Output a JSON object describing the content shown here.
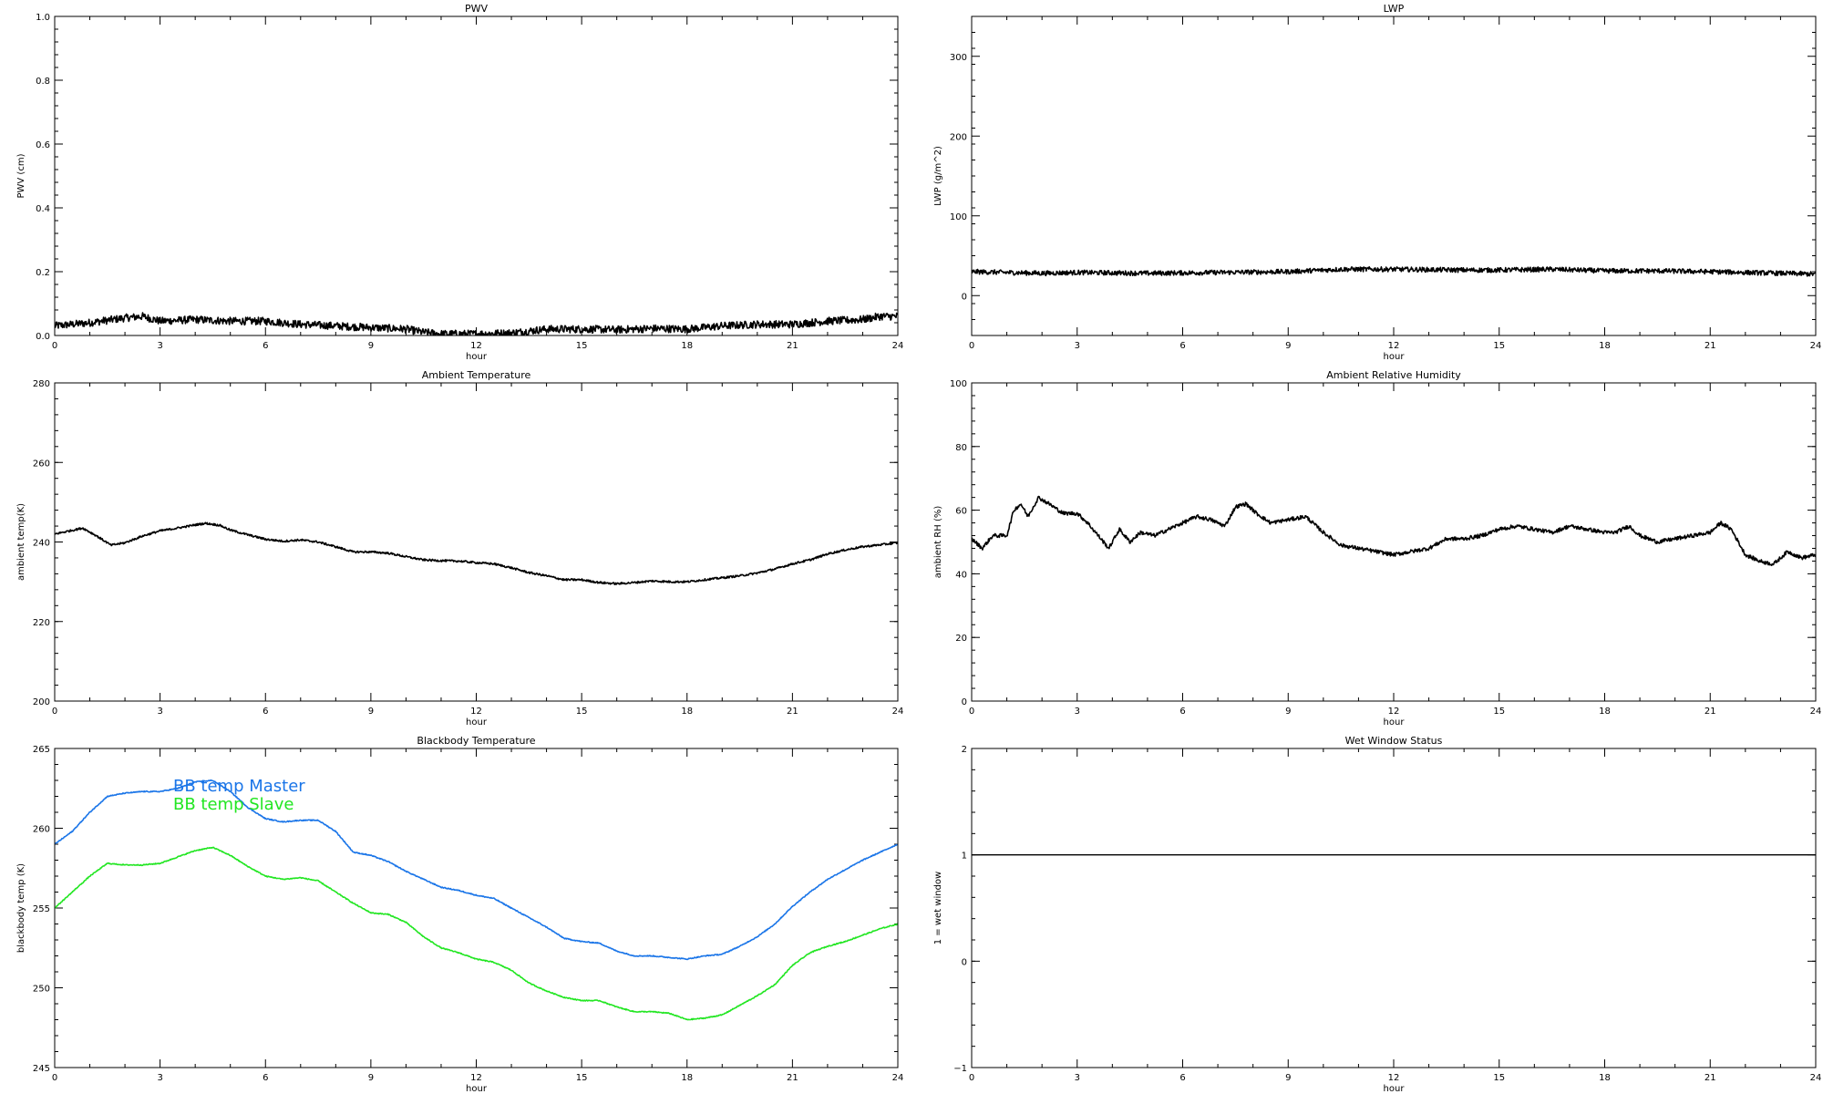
{
  "chart_data": [
    {
      "id": "pwv",
      "type": "line",
      "title": "PWV",
      "xlabel": "hour",
      "ylabel": "PWV (cm)",
      "xlim": [
        0,
        24
      ],
      "ylim": [
        0,
        1.0
      ],
      "xticks": [
        0,
        3,
        6,
        9,
        12,
        15,
        18,
        21,
        24
      ],
      "yticks": [
        0.0,
        0.2,
        0.4,
        0.6,
        0.8,
        1.0
      ],
      "ytick_labels": [
        "0.0",
        "0.2",
        "0.4",
        "0.6",
        "0.8",
        "1.0"
      ],
      "noise": 0.012,
      "series": [
        {
          "color": "#000000",
          "x": [
            0,
            1,
            2,
            2.5,
            3,
            4,
            5,
            6,
            7,
            8,
            9,
            10,
            10.5,
            11,
            12,
            13,
            14,
            15,
            16,
            17,
            18,
            19,
            20,
            21,
            22,
            23,
            23.5,
            24
          ],
          "y": [
            0.03,
            0.04,
            0.055,
            0.06,
            0.045,
            0.05,
            0.045,
            0.045,
            0.035,
            0.03,
            0.025,
            0.02,
            0.01,
            0.005,
            0.005,
            0.008,
            0.02,
            0.02,
            0.018,
            0.022,
            0.02,
            0.03,
            0.035,
            0.035,
            0.045,
            0.05,
            0.06,
            0.06
          ]
        }
      ]
    },
    {
      "id": "lwp",
      "type": "line",
      "title": "LWP",
      "xlabel": "hour",
      "ylabel": "LWP (g/m^2)",
      "xlim": [
        0,
        24
      ],
      "ylim": [
        -50,
        350
      ],
      "xticks": [
        0,
        3,
        6,
        9,
        12,
        15,
        18,
        21,
        24
      ],
      "yticks": [
        0,
        100,
        200,
        300
      ],
      "ytick_labels": [
        "0",
        "100",
        "200",
        "300"
      ],
      "noise": 3,
      "series": [
        {
          "color": "#000000",
          "x": [
            0,
            2,
            3,
            5,
            7,
            9,
            10.5,
            12,
            14,
            15,
            16.5,
            18,
            19.5,
            21,
            23,
            24
          ],
          "y": [
            30,
            28,
            29,
            28,
            29,
            30,
            33,
            33,
            32,
            32,
            33,
            31,
            31,
            30,
            28,
            27
          ]
        }
      ]
    },
    {
      "id": "ambient-temperature",
      "type": "line",
      "title": "Ambient Temperature",
      "xlabel": "hour",
      "ylabel": "ambient temp(K)",
      "xlim": [
        0,
        24
      ],
      "ylim": [
        200,
        280
      ],
      "xticks": [
        0,
        3,
        6,
        9,
        12,
        15,
        18,
        21,
        24
      ],
      "yticks": [
        200,
        220,
        240,
        260,
        280
      ],
      "ytick_labels": [
        "200",
        "220",
        "240",
        "260",
        "280"
      ],
      "noise": 0.25,
      "series": [
        {
          "color": "#000000",
          "x": [
            0,
            0.8,
            1.2,
            1.6,
            2,
            2.5,
            3,
            3.5,
            4,
            4.3,
            4.7,
            5,
            5.5,
            6,
            6.5,
            7,
            7.5,
            8,
            8.5,
            9,
            9.5,
            10,
            10.5,
            11,
            11.5,
            12,
            12.5,
            13,
            13.5,
            14,
            14.5,
            15,
            15.5,
            16,
            16.5,
            17,
            17.5,
            18,
            18.5,
            19,
            19.5,
            20,
            20.5,
            21,
            21.5,
            22,
            22.5,
            23,
            23.5,
            24
          ],
          "y": [
            242,
            243.5,
            241.5,
            239.2,
            239.8,
            241.5,
            242.8,
            243.5,
            244.3,
            244.7,
            244.2,
            243,
            241.8,
            240.7,
            240.2,
            240.5,
            240,
            238.8,
            237.5,
            237.5,
            237.2,
            236.3,
            235.5,
            235.3,
            235.2,
            234.8,
            234.5,
            233.5,
            232.3,
            231.5,
            230.5,
            230.5,
            229.8,
            229.5,
            229.8,
            230.2,
            230,
            230,
            230.5,
            231,
            231.5,
            232.2,
            233.2,
            234.5,
            235.5,
            237,
            238,
            238.8,
            239.3,
            239.8
          ]
        }
      ]
    },
    {
      "id": "ambient-relative-humidity",
      "type": "line",
      "title": "Ambient Relative Humidity",
      "xlabel": "hour",
      "ylabel": "ambient RH (%)",
      "xlim": [
        0,
        24
      ],
      "ylim": [
        0,
        100
      ],
      "xticks": [
        0,
        3,
        6,
        9,
        12,
        15,
        18,
        21,
        24
      ],
      "yticks": [
        0,
        20,
        40,
        60,
        80,
        100
      ],
      "ytick_labels": [
        "0",
        "20",
        "40",
        "60",
        "80",
        "100"
      ],
      "noise": 0.6,
      "series": [
        {
          "color": "#000000",
          "x": [
            0,
            0.3,
            0.6,
            1,
            1.2,
            1.4,
            1.6,
            1.9,
            2.2,
            2.6,
            3,
            3.3,
            3.6,
            3.9,
            4.2,
            4.5,
            4.8,
            5.2,
            5.6,
            6,
            6.4,
            6.8,
            7.2,
            7.5,
            7.8,
            8.1,
            8.5,
            9,
            9.5,
            10,
            10.5,
            11,
            11.5,
            12,
            12.5,
            13,
            13.5,
            14,
            14.5,
            15,
            15.5,
            16,
            16.5,
            17,
            17.5,
            18,
            18.3,
            18.7,
            19,
            19.5,
            20,
            20.5,
            21,
            21.3,
            21.6,
            22,
            22.4,
            22.8,
            23.2,
            23.6,
            24
          ],
          "y": [
            51,
            48,
            52,
            52,
            60,
            62,
            58,
            64,
            62,
            59,
            59,
            56,
            52,
            48,
            54,
            50,
            53,
            52,
            54,
            56,
            58,
            57,
            55,
            61,
            62,
            59,
            56,
            57,
            58,
            53,
            49,
            48,
            47,
            46,
            47,
            48,
            51,
            51,
            52,
            54,
            55,
            54,
            53,
            55,
            54,
            53,
            53,
            55,
            52,
            50,
            51,
            52,
            53,
            56,
            54,
            46,
            44,
            43,
            47,
            45,
            46
          ]
        }
      ]
    },
    {
      "id": "blackbody-temperature",
      "type": "line",
      "title": "Blackbody Temperature",
      "xlabel": "hour",
      "ylabel": "blackbody temp (K)",
      "xlim": [
        0,
        24
      ],
      "ylim": [
        245,
        265
      ],
      "xticks": [
        0,
        3,
        6,
        9,
        12,
        15,
        18,
        21,
        24
      ],
      "yticks": [
        245,
        250,
        255,
        260,
        265
      ],
      "ytick_labels": [
        "245",
        "250",
        "255",
        "260",
        "265"
      ],
      "noise": 0.03,
      "legend": [
        "BB temp Master",
        "BB temp Slave"
      ],
      "series": [
        {
          "name": "BB temp Master",
          "color": "#1a75e8",
          "x": [
            0,
            0.5,
            1,
            1.5,
            2,
            2.5,
            3,
            3.5,
            4,
            4.5,
            5,
            5.5,
            6,
            6.5,
            7,
            7.5,
            8,
            8.5,
            9,
            9.5,
            10,
            10.5,
            11,
            11.5,
            12,
            12.5,
            13,
            13.5,
            14,
            14.5,
            15,
            15.5,
            16,
            16.5,
            17,
            17.5,
            18,
            18.5,
            19,
            19.5,
            20,
            20.5,
            21,
            21.5,
            22,
            22.5,
            23,
            23.5,
            24
          ],
          "y": [
            259,
            259.8,
            261,
            262,
            262.2,
            262.3,
            262.3,
            262.5,
            262.9,
            263,
            262.3,
            261.3,
            260.6,
            260.4,
            260.5,
            260.5,
            259.8,
            258.5,
            258.3,
            257.9,
            257.3,
            256.8,
            256.3,
            256.1,
            255.8,
            255.6,
            255,
            254.4,
            253.8,
            253.1,
            252.9,
            252.8,
            252.3,
            252,
            252,
            251.9,
            251.8,
            252,
            252.1,
            252.6,
            253.2,
            254,
            255.1,
            256,
            256.8,
            257.4,
            258,
            258.5,
            259
          ]
        },
        {
          "name": "BB temp Slave",
          "color": "#22e622",
          "x": [
            0,
            0.5,
            1,
            1.5,
            2,
            2.5,
            3,
            3.5,
            4,
            4.5,
            5,
            5.5,
            6,
            6.5,
            7,
            7.5,
            8,
            8.5,
            9,
            9.5,
            10,
            10.5,
            11,
            11.5,
            12,
            12.5,
            13,
            13.5,
            14,
            14.5,
            15,
            15.5,
            16,
            16.5,
            17,
            17.5,
            18,
            18.5,
            19,
            19.5,
            20,
            20.5,
            21,
            21.5,
            22,
            22.5,
            23,
            23.5,
            24
          ],
          "y": [
            255,
            256,
            257,
            257.8,
            257.7,
            257.7,
            257.8,
            258.2,
            258.6,
            258.8,
            258.3,
            257.6,
            257,
            256.8,
            256.9,
            256.7,
            256,
            255.3,
            254.7,
            254.6,
            254.1,
            253.2,
            252.5,
            252.2,
            251.8,
            251.6,
            251.1,
            250.3,
            249.8,
            249.4,
            249.2,
            249.2,
            248.8,
            248.5,
            248.5,
            248.4,
            248,
            248.1,
            248.3,
            248.9,
            249.5,
            250.2,
            251.4,
            252.2,
            252.6,
            252.9,
            253.3,
            253.7,
            254
          ]
        }
      ]
    },
    {
      "id": "wet-window-status",
      "type": "line",
      "title": "Wet Window Status",
      "xlabel": "hour",
      "ylabel": "1 = wet window",
      "xlim": [
        0,
        24
      ],
      "ylim": [
        -1,
        2
      ],
      "xticks": [
        0,
        3,
        6,
        9,
        12,
        15,
        18,
        21,
        24
      ],
      "yticks": [
        -1,
        0,
        1,
        2
      ],
      "ytick_labels": [
        "−1",
        "0",
        "1",
        "2"
      ],
      "noise": 0,
      "series": [
        {
          "color": "#000000",
          "x": [
            0,
            24
          ],
          "y": [
            1,
            1
          ]
        }
      ]
    }
  ]
}
